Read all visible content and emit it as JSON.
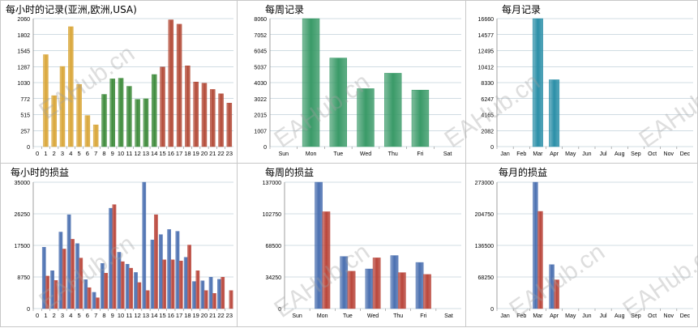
{
  "watermark": "EAHub.cn",
  "colors": {
    "gold": "#d9a638",
    "green": "#3d8a3a",
    "red": "#b34a37",
    "weekGreen": "#3a9a68",
    "monthTeal": "#2b8fa8",
    "lossBlue": "#4a6fb0",
    "lossRed": "#b9453a",
    "grid": "#7a9bb0"
  },
  "chart_data": [
    {
      "id": "hourly_records",
      "type": "bar",
      "title": "每小时的记录(亚洲,欧洲,USA)",
      "categories": [
        "0",
        "1",
        "2",
        "3",
        "4",
        "5",
        "6",
        "7",
        "8",
        "9",
        "10",
        "11",
        "12",
        "13",
        "14",
        "15",
        "16",
        "17",
        "18",
        "19",
        "20",
        "21",
        "22",
        "23"
      ],
      "values": [
        0,
        1480,
        820,
        1290,
        1930,
        1000,
        500,
        350,
        840,
        1090,
        1100,
        970,
        760,
        770,
        1160,
        1280,
        2040,
        1970,
        1300,
        1040,
        1020,
        920,
        850,
        700
      ],
      "bar_colors": [
        "gold",
        "gold",
        "gold",
        "gold",
        "gold",
        "gold",
        "gold",
        "gold",
        "green",
        "green",
        "green",
        "green",
        "green",
        "green",
        "green",
        "red",
        "red",
        "red",
        "red",
        "red",
        "red",
        "red",
        "red",
        "red"
      ],
      "yticks": [
        "0",
        "257",
        "515",
        "772",
        "1030",
        "1287",
        "1545",
        "1802",
        "2060"
      ],
      "ylim": [
        0,
        2060
      ]
    },
    {
      "id": "weekly_records",
      "type": "bar",
      "title": "每周记录",
      "categories": [
        "Sun",
        "Mon",
        "Tue",
        "Wed",
        "Thu",
        "Fri",
        "Sat"
      ],
      "values": [
        0,
        8060,
        5580,
        3650,
        4620,
        3560,
        0
      ],
      "yticks": [
        "0",
        "1007",
        "2015",
        "3022",
        "4030",
        "5037",
        "6045",
        "7052",
        "8060"
      ],
      "ylim": [
        0,
        8060
      ]
    },
    {
      "id": "monthly_records",
      "type": "bar",
      "title": "每月记录",
      "categories": [
        "Jan",
        "Feb",
        "Mar",
        "Apr",
        "May",
        "Jun",
        "Jul",
        "Aug",
        "Sep",
        "Oct",
        "Nov",
        "Dec"
      ],
      "values": [
        0,
        0,
        16660,
        8700,
        0,
        0,
        0,
        0,
        0,
        0,
        0,
        0
      ],
      "yticks": [
        "0",
        "2082",
        "4165",
        "6247",
        "8330",
        "10412",
        "12495",
        "14577",
        "16660"
      ],
      "ylim": [
        0,
        16660
      ]
    },
    {
      "id": "hourly_pl",
      "type": "bar",
      "title": "每小时的损益",
      "categories": [
        "0",
        "1",
        "2",
        "3",
        "4",
        "5",
        "6",
        "7",
        "8",
        "9",
        "10",
        "11",
        "12",
        "13",
        "14",
        "15",
        "16",
        "17",
        "18",
        "19",
        "20",
        "21",
        "22",
        "23"
      ],
      "series": [
        {
          "color": "lossBlue",
          "values": [
            0,
            17000,
            10500,
            21200,
            26000,
            18000,
            8000,
            4500,
            12500,
            27800,
            15600,
            12300,
            10000,
            35000,
            19000,
            20500,
            21900,
            21400,
            14200,
            7500,
            7700,
            8700,
            8100,
            0
          ]
        },
        {
          "color": "lossRed",
          "values": [
            0,
            9000,
            7800,
            16500,
            19200,
            14000,
            5800,
            3000,
            9800,
            28800,
            13000,
            11200,
            7200,
            5000,
            26000,
            13500,
            13500,
            13200,
            17600,
            10500,
            5000,
            4200,
            8700,
            5000
          ]
        }
      ],
      "yticks": [
        "0",
        "8750",
        "17500",
        "26250",
        "35000"
      ],
      "ylim": [
        0,
        35000
      ]
    },
    {
      "id": "weekly_pl",
      "type": "bar",
      "title": "每周的损益",
      "categories": [
        "Sun",
        "Mon",
        "Tue",
        "Wed",
        "Thu",
        "Fri",
        "Sat"
      ],
      "series": [
        {
          "color": "lossBlue",
          "values": [
            0,
            137000,
            56500,
            43000,
            57500,
            50000,
            0
          ]
        },
        {
          "color": "lossRed",
          "values": [
            0,
            105000,
            40500,
            55000,
            39000,
            37000,
            0
          ]
        }
      ],
      "yticks": [
        "0",
        "34250",
        "68500",
        "102750",
        "137000"
      ],
      "ylim": [
        0,
        137000
      ]
    },
    {
      "id": "monthly_pl",
      "type": "bar",
      "title": "每月的损益",
      "categories": [
        "Jan",
        "Feb",
        "Mar",
        "Apr",
        "May",
        "Jun",
        "Jul",
        "Aug",
        "Sep",
        "Oct",
        "Nov",
        "Dec"
      ],
      "series": [
        {
          "color": "lossBlue",
          "values": [
            0,
            0,
            273000,
            95000,
            0,
            0,
            0,
            0,
            0,
            0,
            0,
            0
          ]
        },
        {
          "color": "lossRed",
          "values": [
            0,
            0,
            210000,
            62000,
            0,
            0,
            0,
            0,
            0,
            0,
            0,
            0
          ]
        }
      ],
      "yticks": [
        "0",
        "68250",
        "136500",
        "204750",
        "273000"
      ],
      "ylim": [
        0,
        273000
      ]
    }
  ]
}
